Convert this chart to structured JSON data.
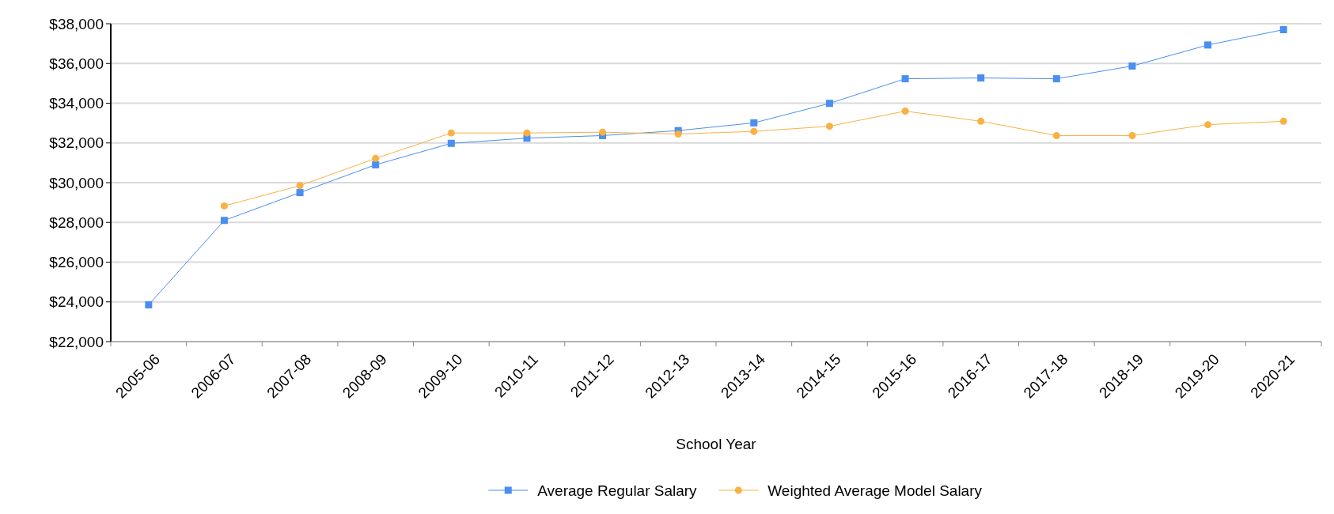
{
  "chart_data": {
    "type": "line",
    "xlabel": "School Year",
    "categories": [
      "2005-06",
      "2006-07",
      "2007-08",
      "2008-09",
      "2009-10",
      "2010-11",
      "2011-12",
      "2012-13",
      "2013-14",
      "2014-15",
      "2015-16",
      "2016-17",
      "2017-18",
      "2018-19",
      "2019-20",
      "2020-21"
    ],
    "series": [
      {
        "name": "Average Regular Salary",
        "color": "#4a8ef2",
        "marker": "square",
        "values": [
          23850,
          28100,
          29500,
          30900,
          31980,
          32240,
          32370,
          32620,
          33010,
          33990,
          35230,
          35270,
          35230,
          35870,
          36930,
          37700
        ]
      },
      {
        "name": "Weighted Average Model Salary",
        "color": "#f9b142",
        "marker": "circle",
        "values": [
          null,
          28830,
          29850,
          31220,
          32500,
          32500,
          32540,
          32450,
          32580,
          32840,
          33600,
          33090,
          32370,
          32370,
          32920,
          33090
        ]
      }
    ],
    "ylim": [
      22000,
      38000
    ],
    "yticks": [
      {
        "value": 22000,
        "label": "$22,000"
      },
      {
        "value": 24000,
        "label": "$24,000"
      },
      {
        "value": 26000,
        "label": "$26,000"
      },
      {
        "value": 28000,
        "label": "$28,000"
      },
      {
        "value": 30000,
        "label": "$30,000"
      },
      {
        "value": 32000,
        "label": "$32,000"
      },
      {
        "value": 34000,
        "label": "$34,000"
      },
      {
        "value": 36000,
        "label": "$36,000"
      },
      {
        "value": 38000,
        "label": "$38,000"
      }
    ],
    "grid": "y",
    "legend": "bottom"
  }
}
